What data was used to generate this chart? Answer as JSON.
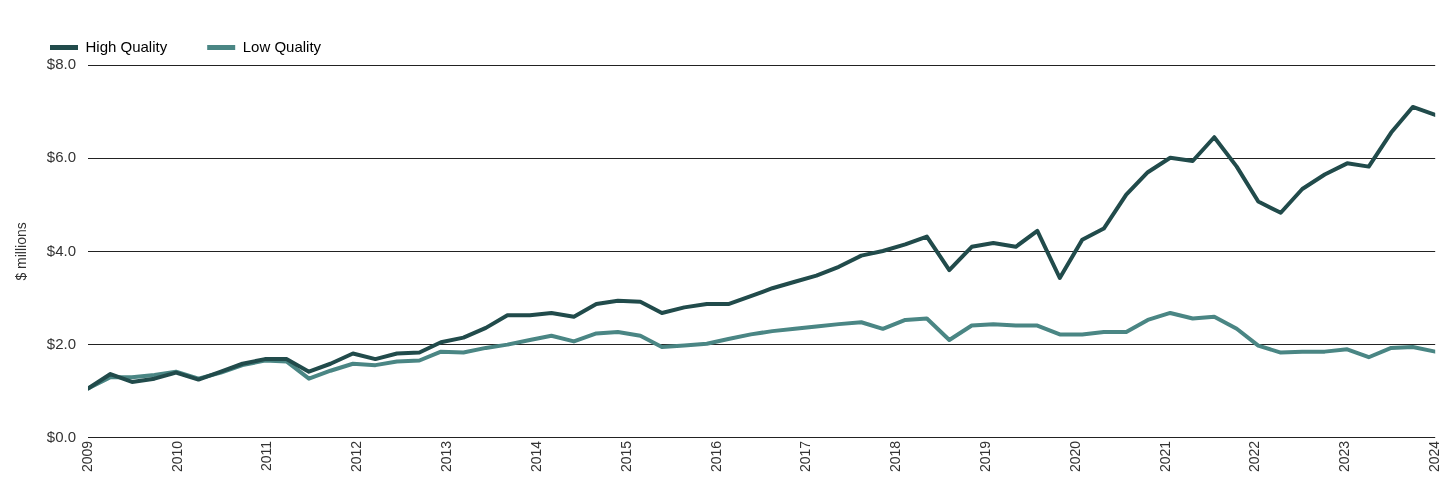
{
  "chart_data": {
    "type": "line",
    "ylabel": "$ millions",
    "legend": "top left",
    "grid": "y",
    "marker": "none",
    "line_style": "solid",
    "x": [
      2009.0,
      2009.25,
      2009.49,
      2009.74,
      2009.98,
      2010.23,
      2010.48,
      2010.72,
      2010.97,
      2011.21,
      2011.46,
      2011.7,
      2011.95,
      2012.2,
      2012.44,
      2012.69,
      2012.93,
      2013.18,
      2013.43,
      2013.67,
      2013.92,
      2014.16,
      2014.41,
      2014.66,
      2014.9,
      2015.15,
      2015.39,
      2015.64,
      2015.89,
      2016.13,
      2016.38,
      2016.62,
      2016.87,
      2017.11,
      2017.36,
      2017.61,
      2017.85,
      2018.1,
      2018.34,
      2018.59,
      2018.84,
      2019.08,
      2019.33,
      2019.57,
      2019.82,
      2020.07,
      2020.31,
      2020.56,
      2020.8,
      2021.05,
      2021.3,
      2021.54,
      2021.79,
      2022.03,
      2022.28,
      2022.52,
      2022.77,
      2023.02,
      2023.26,
      2023.51,
      2023.75,
      2024.0
    ],
    "xlim": [
      2009,
      2024
    ],
    "xticks": [
      2009,
      2010,
      2011,
      2012,
      2013,
      2014,
      2015,
      2016,
      2017,
      2018,
      2019,
      2020,
      2021,
      2022,
      2023,
      2024
    ],
    "ylim": [
      0,
      8
    ],
    "yticks": [
      {
        "value": 0,
        "label": "$0.0"
      },
      {
        "value": 2,
        "label": "$2.0"
      },
      {
        "value": 4,
        "label": "$4.0"
      },
      {
        "value": 6,
        "label": "$6.0"
      },
      {
        "value": 8,
        "label": "$8.0"
      }
    ],
    "series": [
      {
        "name": "High Quality",
        "color": "#214b4b",
        "values": [
          1.06,
          1.37,
          1.2,
          1.27,
          1.4,
          1.25,
          1.42,
          1.59,
          1.69,
          1.69,
          1.42,
          1.59,
          1.81,
          1.69,
          1.81,
          1.83,
          2.05,
          2.15,
          2.36,
          2.63,
          2.63,
          2.68,
          2.6,
          2.87,
          2.94,
          2.92,
          2.68,
          2.8,
          2.87,
          2.87,
          3.04,
          3.21,
          3.35,
          3.48,
          3.67,
          3.91,
          4.01,
          4.15,
          4.32,
          3.6,
          4.1,
          4.18,
          4.1,
          4.44,
          3.43,
          4.25,
          4.49,
          5.22,
          5.7,
          6.01,
          5.94,
          6.45,
          5.82,
          5.07,
          4.83,
          5.34,
          5.65,
          5.89,
          5.82,
          6.55,
          7.1,
          6.93
        ]
      },
      {
        "name": "Low Quality",
        "color": "#4a8684",
        "values": [
          1.06,
          1.3,
          1.3,
          1.35,
          1.42,
          1.27,
          1.4,
          1.56,
          1.66,
          1.64,
          1.27,
          1.44,
          1.59,
          1.56,
          1.64,
          1.66,
          1.85,
          1.83,
          1.93,
          2.0,
          2.1,
          2.19,
          2.07,
          2.24,
          2.27,
          2.19,
          1.95,
          1.98,
          2.02,
          2.12,
          2.22,
          2.29,
          2.34,
          2.39,
          2.44,
          2.48,
          2.34,
          2.53,
          2.56,
          2.1,
          2.41,
          2.44,
          2.41,
          2.41,
          2.22,
          2.22,
          2.27,
          2.27,
          2.53,
          2.68,
          2.56,
          2.6,
          2.34,
          1.98,
          1.83,
          1.85,
          1.85,
          1.9,
          1.73,
          1.93,
          1.95,
          1.85
        ]
      }
    ]
  }
}
